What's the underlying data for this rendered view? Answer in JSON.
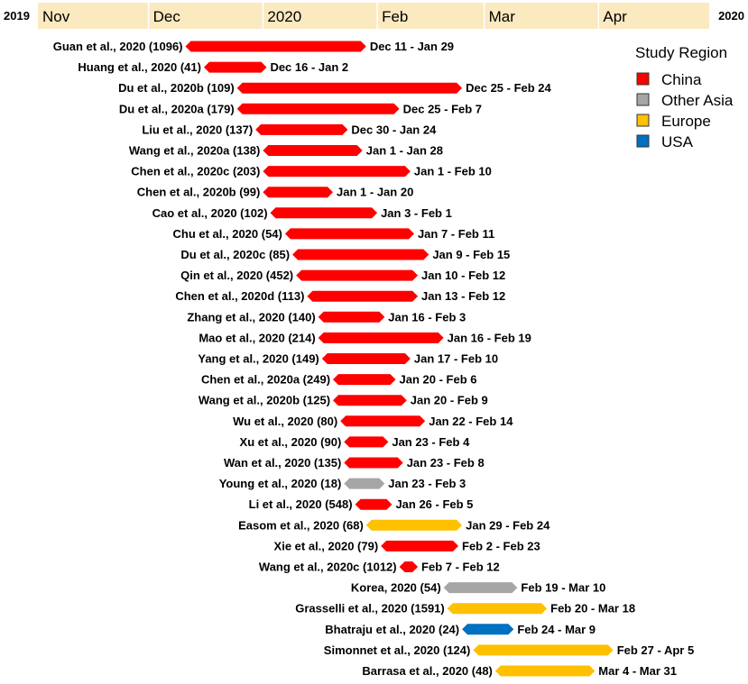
{
  "chart_data": {
    "type": "bar",
    "x_axis": {
      "start": "2019-11-01",
      "end": "2020-05-01",
      "left_label": "2019",
      "right_label": "2020",
      "ticks": [
        {
          "date": "2019-11-01",
          "label": "Nov"
        },
        {
          "date": "2019-12-01",
          "label": "Dec"
        },
        {
          "date": "2020-01-01",
          "label": "2020"
        },
        {
          "date": "2020-02-01",
          "label": "Feb"
        },
        {
          "date": "2020-03-01",
          "label": "Mar"
        },
        {
          "date": "2020-04-01",
          "label": "Apr"
        }
      ]
    },
    "legend": {
      "title": "Study Region",
      "placement": "top-right",
      "entries": [
        {
          "name": "China",
          "color": "#ff0000"
        },
        {
          "name": "Other Asia",
          "color": "#a6a6a6"
        },
        {
          "name": "Europe",
          "color": "#ffc000"
        },
        {
          "name": "USA",
          "color": "#0070c0"
        }
      ]
    },
    "studies": [
      {
        "label": "Guan et al., 2020 (1096)",
        "start": "2019-12-11",
        "end": "2020-01-29",
        "range": "Dec 11 - Jan 29",
        "region": "China"
      },
      {
        "label": "Huang et al., 2020 (41)",
        "start": "2019-12-16",
        "end": "2020-01-02",
        "range": "Dec 16 - Jan 2",
        "region": "China"
      },
      {
        "label": "Du et al., 2020b (109)",
        "start": "2019-12-25",
        "end": "2020-02-24",
        "range": "Dec 25 - Feb 24",
        "region": "China"
      },
      {
        "label": "Du et al., 2020a (179)",
        "start": "2019-12-25",
        "end": "2020-02-07",
        "range": "Dec 25 - Feb 7",
        "region": "China"
      },
      {
        "label": "Liu et al., 2020 (137)",
        "start": "2019-12-30",
        "end": "2020-01-24",
        "range": "Dec 30 - Jan 24",
        "region": "China"
      },
      {
        "label": "Wang et al., 2020a (138)",
        "start": "2020-01-01",
        "end": "2020-01-28",
        "range": "Jan 1 - Jan 28",
        "region": "China"
      },
      {
        "label": "Chen et al., 2020c (203)",
        "start": "2020-01-01",
        "end": "2020-02-10",
        "range": "Jan 1 - Feb 10",
        "region": "China"
      },
      {
        "label": "Chen et al., 2020b (99)",
        "start": "2020-01-01",
        "end": "2020-01-20",
        "range": "Jan 1 - Jan 20",
        "region": "China"
      },
      {
        "label": "Cao et al., 2020 (102)",
        "start": "2020-01-03",
        "end": "2020-02-01",
        "range": "Jan 3 - Feb 1",
        "region": "China"
      },
      {
        "label": "Chu et al., 2020 (54)",
        "start": "2020-01-07",
        "end": "2020-02-11",
        "range": "Jan 7 - Feb 11",
        "region": "China"
      },
      {
        "label": "Du et al., 2020c (85)",
        "start": "2020-01-09",
        "end": "2020-02-15",
        "range": "Jan 9 - Feb 15",
        "region": "China"
      },
      {
        "label": "Qin et al., 2020 (452)",
        "start": "2020-01-10",
        "end": "2020-02-12",
        "range": "Jan 10 - Feb 12",
        "region": "China"
      },
      {
        "label": "Chen et al., 2020d (113)",
        "start": "2020-01-13",
        "end": "2020-02-12",
        "range": "Jan 13 - Feb 12",
        "region": "China"
      },
      {
        "label": "Zhang et al., 2020 (140)",
        "start": "2020-01-16",
        "end": "2020-02-03",
        "range": "Jan 16 - Feb 3",
        "region": "China"
      },
      {
        "label": "Mao et al., 2020 (214)",
        "start": "2020-01-16",
        "end": "2020-02-19",
        "range": "Jan 16 - Feb 19",
        "region": "China"
      },
      {
        "label": "Yang et al., 2020 (149)",
        "start": "2020-01-17",
        "end": "2020-02-10",
        "range": "Jan 17 - Feb 10",
        "region": "China"
      },
      {
        "label": "Chen et al., 2020a (249)",
        "start": "2020-01-20",
        "end": "2020-02-06",
        "range": "Jan 20 - Feb 6",
        "region": "China"
      },
      {
        "label": "Wang et al., 2020b (125)",
        "start": "2020-01-20",
        "end": "2020-02-09",
        "range": "Jan 20 - Feb 9",
        "region": "China"
      },
      {
        "label": "Wu et al., 2020 (80)",
        "start": "2020-01-22",
        "end": "2020-02-14",
        "range": "Jan 22 - Feb 14",
        "region": "China"
      },
      {
        "label": "Xu et al., 2020 (90)",
        "start": "2020-01-23",
        "end": "2020-02-04",
        "range": "Jan 23 - Feb 4",
        "region": "China"
      },
      {
        "label": "Wan et al., 2020 (135)",
        "start": "2020-01-23",
        "end": "2020-02-08",
        "range": "Jan 23 - Feb 8",
        "region": "China"
      },
      {
        "label": "Young et al., 2020 (18)",
        "start": "2020-01-23",
        "end": "2020-02-03",
        "range": "Jan 23 - Feb 3",
        "region": "Other Asia"
      },
      {
        "label": "Li et al., 2020 (548)",
        "start": "2020-01-26",
        "end": "2020-02-05",
        "range": "Jan 26 - Feb 5",
        "region": "China"
      },
      {
        "label": "Easom et al., 2020 (68)",
        "start": "2020-01-29",
        "end": "2020-02-24",
        "range": "Jan 29 - Feb 24",
        "region": "Europe"
      },
      {
        "label": "Xie et al., 2020 (79)",
        "start": "2020-02-02",
        "end": "2020-02-23",
        "range": "Feb 2 - Feb 23",
        "region": "China"
      },
      {
        "label": "Wang et al., 2020c (1012)",
        "start": "2020-02-07",
        "end": "2020-02-12",
        "range": "Feb 7 - Feb 12",
        "region": "China"
      },
      {
        "label": "Korea, 2020 (54)",
        "start": "2020-02-19",
        "end": "2020-03-10",
        "range": "Feb 19 - Mar 10",
        "region": "Other Asia"
      },
      {
        "label": "Grasselli et al., 2020 (1591)",
        "start": "2020-02-20",
        "end": "2020-03-18",
        "range": "Feb 20 - Mar 18",
        "region": "Europe"
      },
      {
        "label": "Bhatraju et al., 2020 (24)",
        "start": "2020-02-24",
        "end": "2020-03-09",
        "range": "Feb 24 - Mar 9",
        "region": "USA"
      },
      {
        "label": "Simonnet et al., 2020 (124)",
        "start": "2020-02-27",
        "end": "2020-04-05",
        "range": "Feb 27 - Apr 5",
        "region": "Europe"
      },
      {
        "label": "Barrasa et al., 2020 (48)",
        "start": "2020-03-04",
        "end": "2020-03-31",
        "range": "Mar 4 - Mar 31",
        "region": "Europe"
      }
    ]
  }
}
